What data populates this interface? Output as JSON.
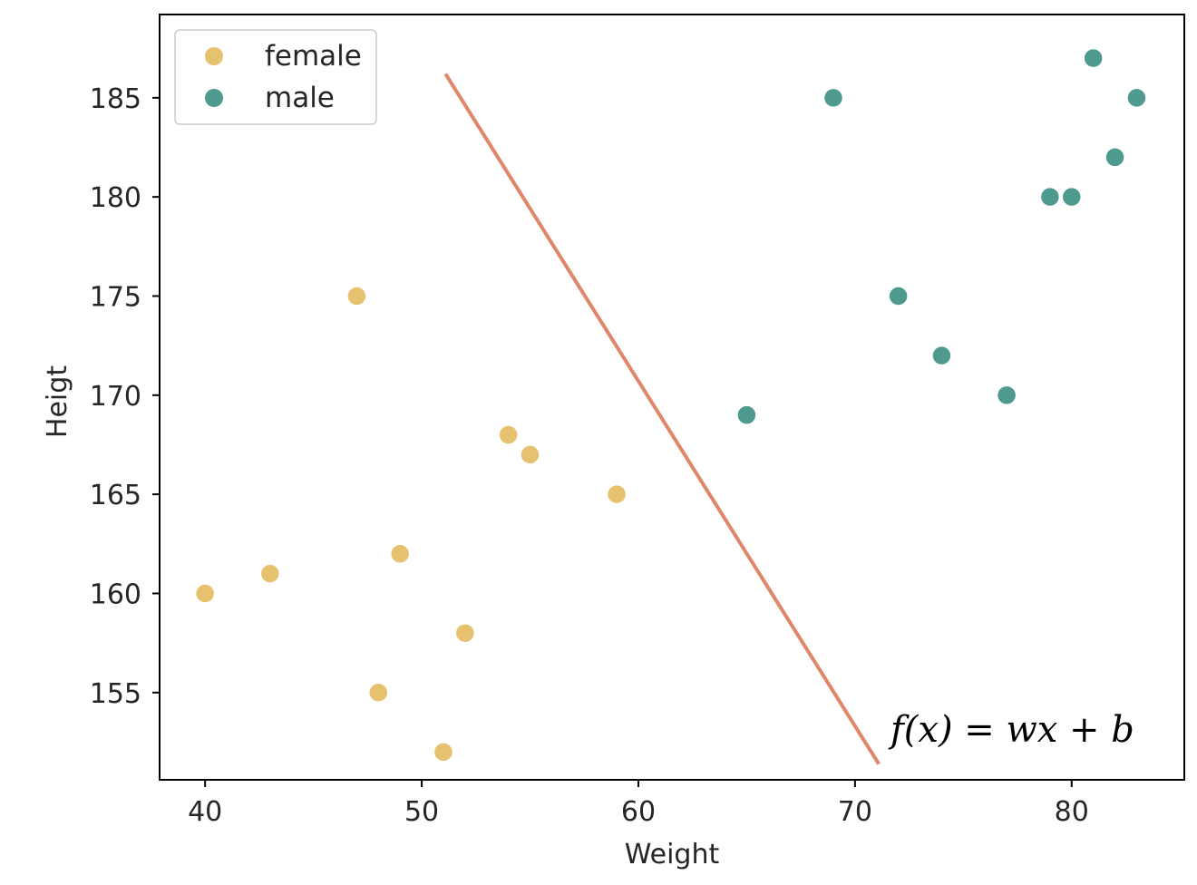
{
  "chart_data": {
    "type": "scatter",
    "xlabel": "Weight",
    "ylabel": "Heigt",
    "xlim": [
      37.9,
      85.2
    ],
    "ylim": [
      150.6,
      189.2
    ],
    "xticks": [
      40,
      50,
      60,
      70,
      80
    ],
    "yticks": [
      155,
      160,
      165,
      170,
      175,
      180,
      185
    ],
    "grid": false,
    "legend_position": "top-left",
    "series": [
      {
        "name": "female",
        "color": "#e6c170",
        "points": [
          {
            "x": 40,
            "y": 160
          },
          {
            "x": 43,
            "y": 161
          },
          {
            "x": 47,
            "y": 175
          },
          {
            "x": 48,
            "y": 155
          },
          {
            "x": 49,
            "y": 162
          },
          {
            "x": 51,
            "y": 152
          },
          {
            "x": 52,
            "y": 158
          },
          {
            "x": 54,
            "y": 168
          },
          {
            "x": 55,
            "y": 167
          },
          {
            "x": 59,
            "y": 165
          }
        ]
      },
      {
        "name": "male",
        "color": "#4e9a8e",
        "points": [
          {
            "x": 65,
            "y": 169
          },
          {
            "x": 69,
            "y": 185
          },
          {
            "x": 72,
            "y": 175
          },
          {
            "x": 74,
            "y": 172
          },
          {
            "x": 77,
            "y": 170
          },
          {
            "x": 79,
            "y": 180
          },
          {
            "x": 80,
            "y": 180
          },
          {
            "x": 81,
            "y": 187
          },
          {
            "x": 82,
            "y": 182
          },
          {
            "x": 83,
            "y": 185
          }
        ]
      }
    ],
    "decision_line": {
      "color": "#e0866a",
      "from": {
        "x": 51.1,
        "y": 186.2
      },
      "to": {
        "x": 71.1,
        "y": 151.4
      }
    },
    "annotation": "f(x) = wx + b"
  }
}
